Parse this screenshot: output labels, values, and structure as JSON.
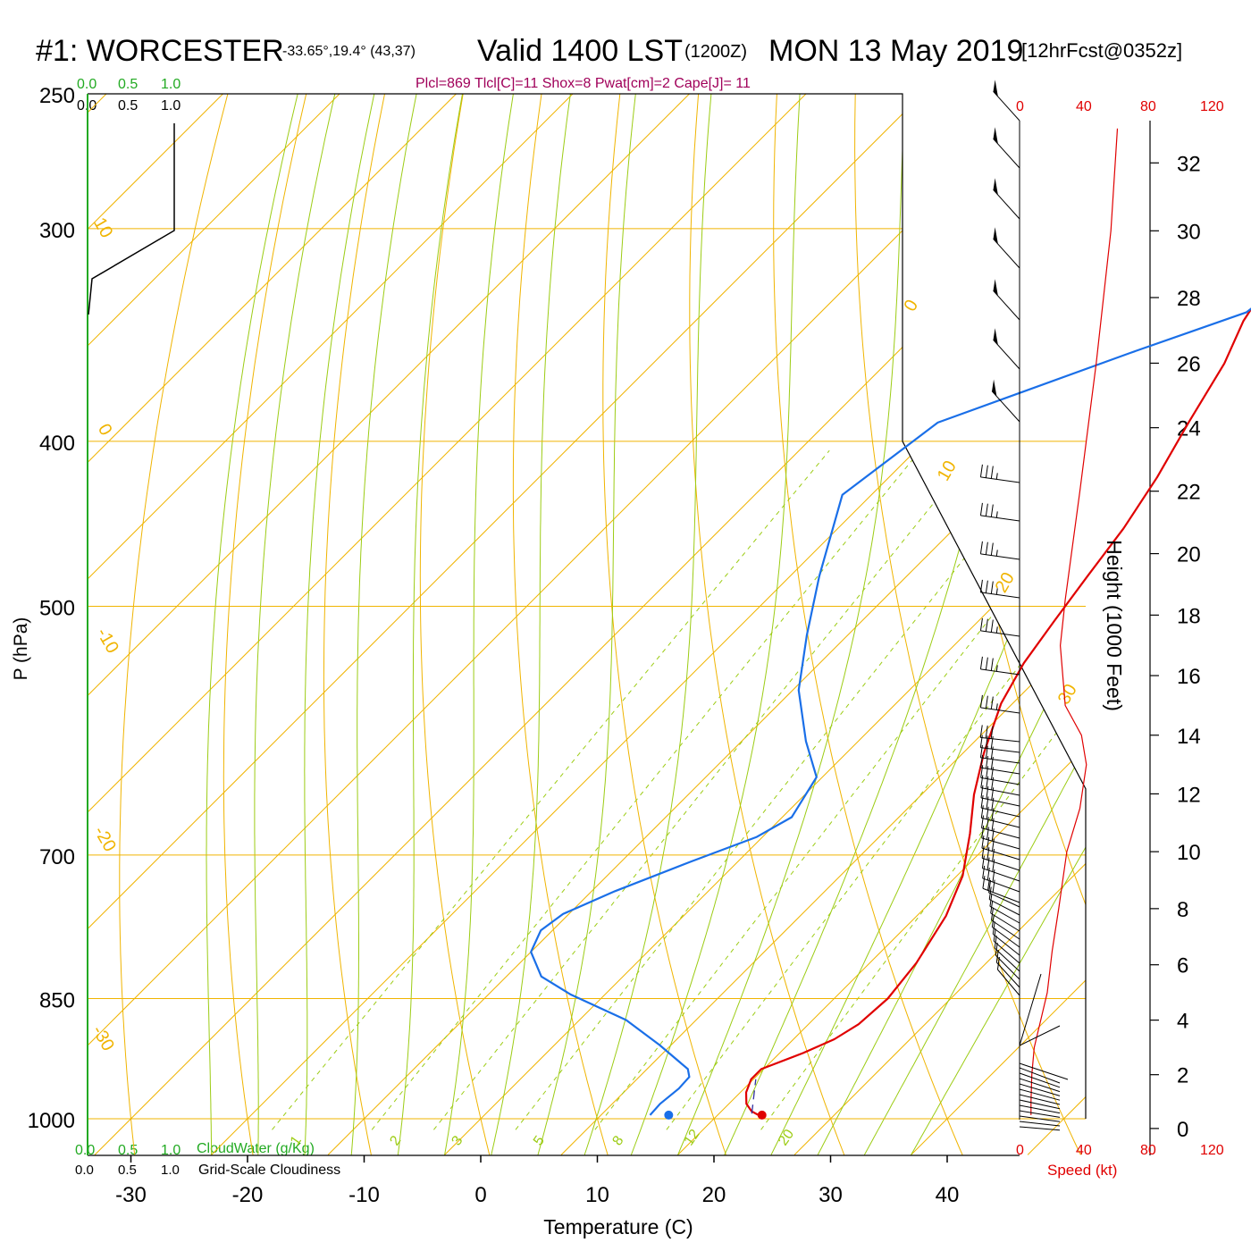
{
  "header": {
    "station": "#1: WORCESTER",
    "coords": "-33.65°,19.4° (43,37)",
    "valid": "Valid 1400 LST",
    "zulu": "(1200Z)",
    "date": "MON 13 May 2019",
    "forecast": "[12hrFcst@0352z]",
    "params": "Plcl=869 Tlcl[C]=11 Shox=8 Pwat[cm]=2 Cape[J]= 11"
  },
  "cloud_scale": {
    "top_green": [
      "0.0",
      "0.5",
      "1.0"
    ],
    "top_black": [
      "0.0",
      "0.5",
      "1.0"
    ],
    "bottom_green": [
      "0.0",
      "0.5",
      "1.0"
    ],
    "bottom_black": [
      "0.0",
      "0.5",
      "1.0"
    ],
    "cloudwater_label": "CloudWater (g/Kg)",
    "cloudiness_label": "Grid-Scale Cloudiness"
  },
  "speed_scale": {
    "ticks": [
      "0",
      "40",
      "80",
      "120"
    ],
    "label": "Speed (kt)"
  },
  "colors": {
    "temperature": "#e00000",
    "dewpoint": "#1a6fe8",
    "isotherm": "#f0b400",
    "dry_adiabat": "#f0b400",
    "moist_adiabat": "#9ccc14",
    "mixing_ratio": "#9ccc14",
    "cloudwater": "#22aa22",
    "header_params": "#a0005a",
    "speed": "#e00000"
  },
  "chart_data": {
    "type": "line",
    "title": "#1: WORCESTER",
    "xlabel": "Temperature (C)",
    "ylabel": "P (hPa)",
    "y2label": "Height (1000 Feet)",
    "x_ticks": [
      -30,
      -20,
      -10,
      0,
      10,
      20,
      30,
      40
    ],
    "p_ticks": [
      250,
      300,
      400,
      500,
      700,
      850,
      1000
    ],
    "height_ticks": [
      0,
      2,
      4,
      6,
      8,
      10,
      12,
      14,
      16,
      18,
      20,
      22,
      24,
      26,
      28,
      30,
      32
    ],
    "xlim": [
      -38,
      46
    ],
    "plim": [
      1015,
      250
    ],
    "mixing_ratio_labels": [
      "1",
      "2",
      "3",
      "5",
      "8",
      "12",
      "20"
    ],
    "mixing_ratio_values": [
      1,
      2,
      3,
      5,
      8,
      12,
      20
    ],
    "isotherm_labels": [
      "10",
      "0",
      "-10",
      "-20",
      "-30",
      "0",
      "10",
      "20",
      "30"
    ],
    "series": [
      {
        "name": "Temperature",
        "points": [
          [
            23.5,
            995
          ],
          [
            22.6,
            990
          ],
          [
            21.5,
            980
          ],
          [
            20.5,
            965
          ],
          [
            19.8,
            948
          ],
          [
            19.8,
            935
          ],
          [
            22.0,
            915
          ],
          [
            23.5,
            898
          ],
          [
            24.3,
            880
          ],
          [
            24.6,
            850
          ],
          [
            24.0,
            810
          ],
          [
            22.5,
            760
          ],
          [
            20.5,
            720
          ],
          [
            17.5,
            680
          ],
          [
            14.5,
            645
          ],
          [
            11.8,
            610
          ],
          [
            9.0,
            570
          ],
          [
            7.5,
            540
          ],
          [
            6.5,
            510
          ],
          [
            5.5,
            480
          ],
          [
            4.5,
            450
          ],
          [
            3.0,
            420
          ],
          [
            1.0,
            390
          ],
          [
            -1.0,
            360
          ],
          [
            -3.0,
            340
          ],
          [
            -4.5,
            318
          ],
          [
            -5.5,
            300
          ],
          [
            -7.0,
            280
          ],
          [
            -8.5,
            262
          ]
        ]
      },
      {
        "name": "Dewpoint",
        "points": [
          [
            14.2,
            995
          ],
          [
            14.1,
            980
          ],
          [
            14.4,
            960
          ],
          [
            14.3,
            945
          ],
          [
            13.5,
            935
          ],
          [
            9.0,
            905
          ],
          [
            4.0,
            875
          ],
          [
            -3.0,
            845
          ],
          [
            -7.0,
            825
          ],
          [
            -10.0,
            798
          ],
          [
            -11.0,
            775
          ],
          [
            -10.5,
            758
          ],
          [
            -8.0,
            735
          ],
          [
            -4.0,
            706
          ],
          [
            -0.5,
            683
          ],
          [
            0.8,
            665
          ],
          [
            -0.5,
            630
          ],
          [
            -4.5,
            600
          ],
          [
            -9.5,
            560
          ],
          [
            -13.5,
            520
          ],
          [
            -17.5,
            480
          ],
          [
            -22.5,
            430
          ],
          [
            -20.5,
            390
          ],
          [
            -10.0,
            355
          ],
          [
            -3.5,
            336
          ],
          [
            -2.5,
            320
          ],
          [
            -3.5,
            300
          ],
          [
            -5.8,
            275
          ],
          [
            -8.5,
            257
          ]
        ]
      }
    ],
    "surface_temperature": 23.8,
    "surface_dewpoint": 15.8,
    "wind_speed_profile": [
      [
        7,
        0.5
      ],
      [
        7,
        1.0
      ],
      [
        7.5,
        2.0
      ],
      [
        9,
        3.0
      ],
      [
        13,
        4.0
      ],
      [
        17,
        5.0
      ],
      [
        20,
        6.5
      ],
      [
        24,
        8.0
      ],
      [
        29,
        10.0
      ],
      [
        37,
        11.5
      ],
      [
        41,
        13.0
      ],
      [
        38,
        14.0
      ],
      [
        28,
        15.0
      ],
      [
        25,
        17.0
      ],
      [
        28,
        18.5
      ],
      [
        37,
        22.0
      ],
      [
        47,
        26.0
      ],
      [
        56,
        30.0
      ],
      [
        60,
        33.0
      ]
    ],
    "grid": true
  }
}
